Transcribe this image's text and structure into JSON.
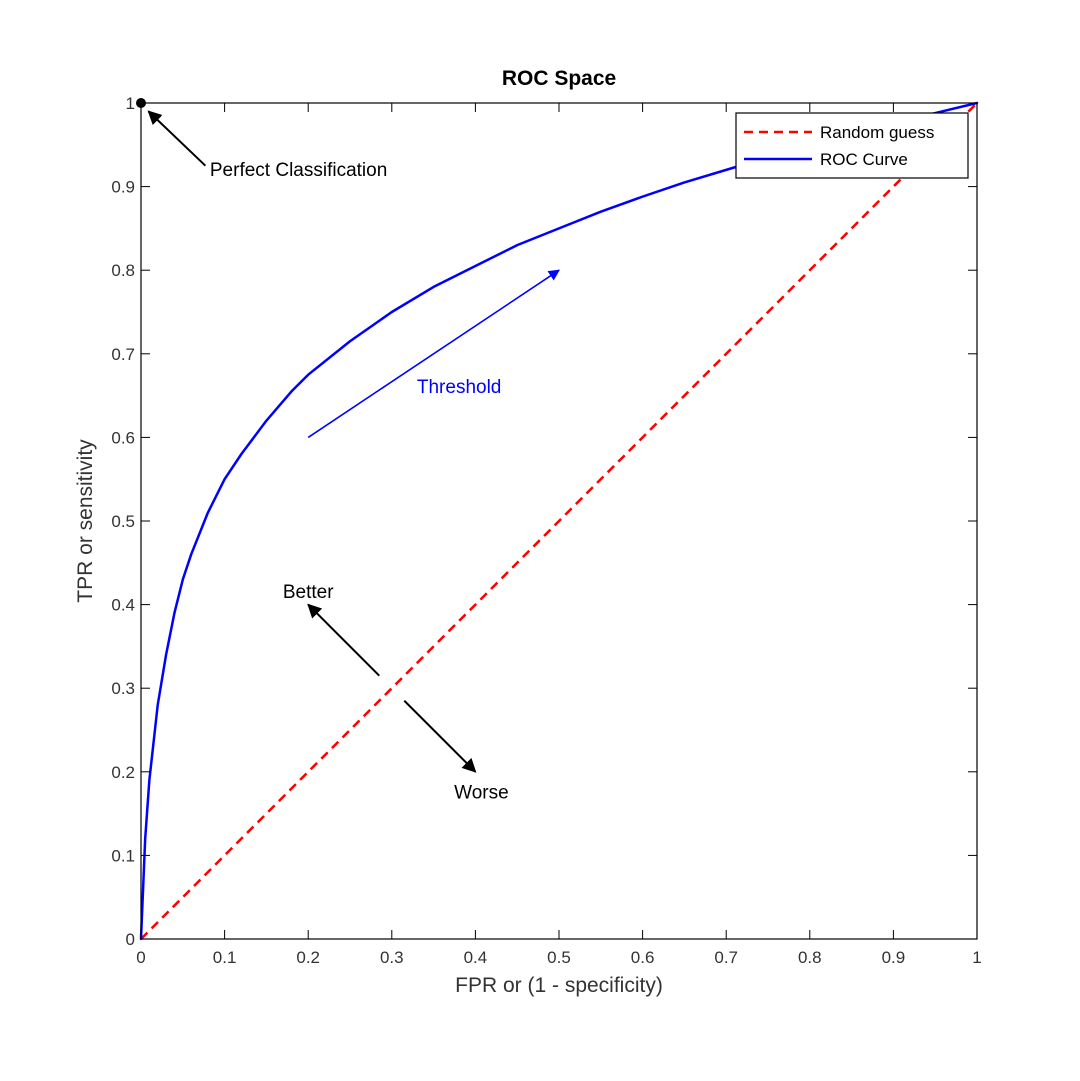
{
  "chart_data": {
    "type": "line",
    "title": "ROC Space",
    "xlabel": "FPR or (1 - specificity)",
    "ylabel": "TPR or sensitivity",
    "xlim": [
      0,
      1
    ],
    "ylim": [
      0,
      1
    ],
    "xticks": [
      "0",
      "0.1",
      "0.2",
      "0.3",
      "0.4",
      "0.5",
      "0.6",
      "0.7",
      "0.8",
      "0.9",
      "1"
    ],
    "yticks": [
      "0",
      "0.1",
      "0.2",
      "0.3",
      "0.4",
      "0.5",
      "0.6",
      "0.7",
      "0.8",
      "0.9",
      "1"
    ],
    "grid": false,
    "legend_position": "top-right",
    "series": [
      {
        "name": "Random guess",
        "color": "#ff0000",
        "style": "dashed",
        "x": [
          0,
          1
        ],
        "y": [
          0,
          1
        ]
      },
      {
        "name": "ROC Curve",
        "color": "#0000ff",
        "style": "solid",
        "x": [
          0,
          0.005,
          0.01,
          0.02,
          0.03,
          0.04,
          0.05,
          0.06,
          0.08,
          0.1,
          0.12,
          0.15,
          0.18,
          0.2,
          0.25,
          0.3,
          0.35,
          0.4,
          0.45,
          0.5,
          0.55,
          0.6,
          0.65,
          0.7,
          0.75,
          0.8,
          0.85,
          0.9,
          0.95,
          1
        ],
        "y": [
          0,
          0.12,
          0.19,
          0.28,
          0.34,
          0.39,
          0.43,
          0.46,
          0.51,
          0.55,
          0.58,
          0.62,
          0.655,
          0.675,
          0.715,
          0.75,
          0.78,
          0.805,
          0.83,
          0.85,
          0.87,
          0.888,
          0.905,
          0.92,
          0.935,
          0.95,
          0.963,
          0.976,
          0.988,
          1
        ]
      }
    ],
    "annotations": {
      "perfect": {
        "text": "Perfect Classification",
        "point": [
          0,
          1
        ],
        "text_at": [
          0.08,
          0.92
        ]
      },
      "threshold": {
        "text": "Threshold",
        "color": "#0000ff",
        "from": [
          0.2,
          0.6
        ],
        "to": [
          0.5,
          0.8
        ],
        "text_at": [
          0.33,
          0.66
        ]
      },
      "better": {
        "text": "Better",
        "from": [
          0.3,
          0.3
        ],
        "to": [
          0.2,
          0.4
        ],
        "text_at": [
          0.2,
          0.415
        ]
      },
      "worse": {
        "text": "Worse",
        "from": [
          0.3,
          0.3
        ],
        "to": [
          0.4,
          0.2
        ],
        "text_at": [
          0.4,
          0.175
        ]
      }
    }
  }
}
